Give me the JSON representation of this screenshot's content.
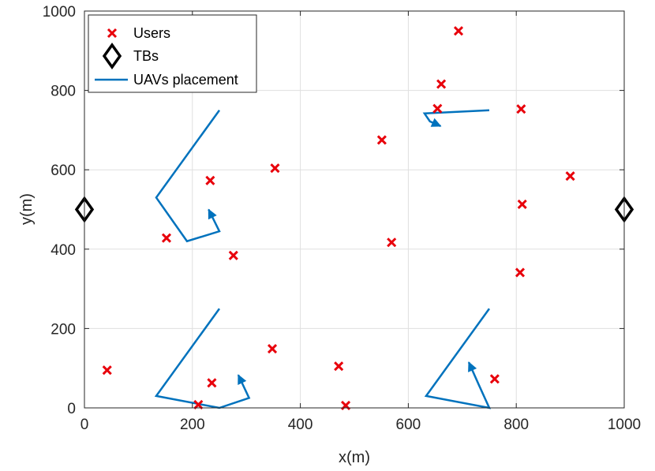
{
  "chart_data": {
    "type": "scatter",
    "xlabel": "x(m)",
    "ylabel": "y(m)",
    "xlim": [
      0,
      1000
    ],
    "ylim": [
      0,
      1000
    ],
    "xticks": [
      "0",
      "200",
      "400",
      "600",
      "800",
      "1000"
    ],
    "yticks": [
      "0",
      "200",
      "400",
      "600",
      "800",
      "1000"
    ],
    "xtick_values": [
      0,
      200,
      400,
      600,
      800,
      1000
    ],
    "ytick_values": [
      0,
      200,
      400,
      600,
      800,
      1000
    ],
    "grid": true,
    "legend_position": "top-left",
    "legend": [
      {
        "label": "Users",
        "marker": "x",
        "color": "#e8000b"
      },
      {
        "label": "TBs",
        "marker": "diamond",
        "color": "#000000"
      },
      {
        "label": "UAVs placement",
        "marker": "line",
        "color": "#0072bd"
      }
    ],
    "users": [
      {
        "x": 42,
        "y": 95
      },
      {
        "x": 152,
        "y": 428
      },
      {
        "x": 211,
        "y": 8
      },
      {
        "x": 233,
        "y": 573
      },
      {
        "x": 236,
        "y": 63
      },
      {
        "x": 276,
        "y": 384
      },
      {
        "x": 348,
        "y": 149
      },
      {
        "x": 353,
        "y": 604
      },
      {
        "x": 471,
        "y": 105
      },
      {
        "x": 484,
        "y": 6
      },
      {
        "x": 551,
        "y": 675
      },
      {
        "x": 569,
        "y": 417
      },
      {
        "x": 654,
        "y": 754
      },
      {
        "x": 661,
        "y": 816
      },
      {
        "x": 693,
        "y": 950
      },
      {
        "x": 760,
        "y": 73
      },
      {
        "x": 807,
        "y": 341
      },
      {
        "x": 809,
        "y": 753
      },
      {
        "x": 811,
        "y": 513
      },
      {
        "x": 900,
        "y": 584
      }
    ],
    "tbs": [
      {
        "x": 0,
        "y": 500
      },
      {
        "x": 1000,
        "y": 500
      }
    ],
    "uav_paths": [
      [
        [
          250,
          750
        ],
        [
          133,
          530
        ],
        [
          190,
          420
        ],
        [
          250,
          445
        ],
        [
          230,
          500
        ]
      ],
      [
        [
          750,
          750
        ],
        [
          630,
          742
        ],
        [
          640,
          722
        ],
        [
          660,
          710
        ]
      ],
      [
        [
          250,
          250
        ],
        [
          133,
          30
        ],
        [
          250,
          0
        ],
        [
          305,
          25
        ],
        [
          285,
          83
        ]
      ],
      [
        [
          750,
          250
        ],
        [
          633,
          30
        ],
        [
          750,
          0
        ],
        [
          730,
          60
        ],
        [
          712,
          115
        ]
      ]
    ]
  }
}
